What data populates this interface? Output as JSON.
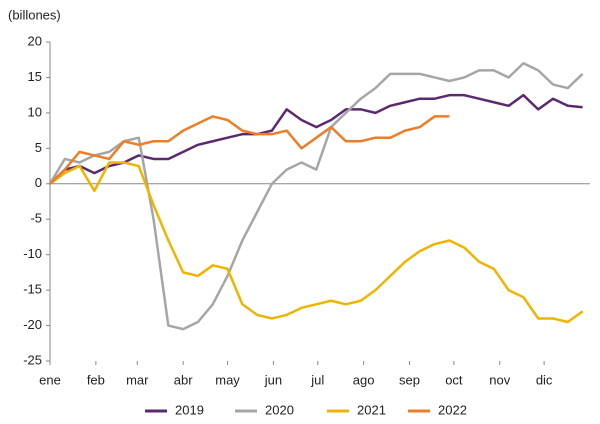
{
  "chart_data": {
    "type": "line",
    "ylabel": "(billones)",
    "x": [
      0,
      10,
      20,
      30,
      40,
      50,
      60,
      70,
      80,
      90,
      100,
      110,
      120,
      130,
      140,
      150,
      160,
      170,
      180,
      190,
      200,
      210,
      220,
      230,
      240,
      250,
      260,
      270,
      280,
      290,
      300,
      310,
      320,
      330,
      340,
      350,
      360
    ],
    "xlim": [
      0,
      365
    ],
    "xticks": [
      {
        "value": 0,
        "label": "ene"
      },
      {
        "value": 31,
        "label": "feb"
      },
      {
        "value": 59,
        "label": "mar"
      },
      {
        "value": 90,
        "label": "abr"
      },
      {
        "value": 120,
        "label": "may"
      },
      {
        "value": 151,
        "label": "jun"
      },
      {
        "value": 181,
        "label": "jul"
      },
      {
        "value": 212,
        "label": "ago"
      },
      {
        "value": 243,
        "label": "sep"
      },
      {
        "value": 273,
        "label": "oct"
      },
      {
        "value": 304,
        "label": "nov"
      },
      {
        "value": 334,
        "label": "dic"
      }
    ],
    "ylim": [
      -25,
      20
    ],
    "yticks": [
      -25,
      -20,
      -15,
      -10,
      -5,
      0,
      5,
      10,
      15,
      20
    ],
    "series": [
      {
        "name": "2019",
        "color": "#5b2a6e",
        "values": [
          0,
          2,
          2.5,
          1.5,
          2.5,
          3,
          4,
          3.5,
          3.5,
          4.5,
          5.5,
          6,
          6.5,
          7,
          7,
          7.5,
          10.5,
          9,
          8,
          9,
          10.5,
          10.5,
          10,
          11,
          11.5,
          12,
          12,
          12.5,
          12.5,
          12,
          11.5,
          11,
          12.5,
          10.5,
          12,
          11,
          10.8
        ]
      },
      {
        "name": "2020",
        "color": "#a6a6a6",
        "values": [
          0,
          3.5,
          3,
          4,
          4.5,
          6,
          6.5,
          -5,
          -20,
          -20.5,
          -19.5,
          -17,
          -13,
          -8,
          -4,
          0,
          2,
          3,
          2,
          8,
          10,
          12,
          13.5,
          15.5,
          15.5,
          15.5,
          15,
          14.5,
          15,
          16,
          16,
          15,
          17,
          16,
          14,
          13.5,
          15.5
        ]
      },
      {
        "name": "2021",
        "color": "#f0b400",
        "values": [
          0,
          1.5,
          2.5,
          -1,
          3,
          3,
          2.5,
          -3,
          -8,
          -12.5,
          -13,
          -11.5,
          -12,
          -17,
          -18.5,
          -19,
          -18.5,
          -17.5,
          -17,
          -16.5,
          -17,
          -16.5,
          -15,
          -13,
          -11,
          -9.5,
          -8.5,
          -8,
          -9,
          -11,
          -12,
          -15,
          -16,
          -19,
          -19,
          -19.5,
          -18
        ]
      },
      {
        "name": "2022",
        "color": "#ee7d28",
        "values": [
          0,
          2,
          4.5,
          4,
          3.5,
          6,
          5.5,
          6,
          6,
          7.5,
          8.5,
          9.5,
          9,
          7.5,
          7,
          7,
          7.5,
          5,
          6.5,
          8,
          6,
          6,
          6.5,
          6.5,
          7.5,
          8,
          9.5,
          9.5,
          null,
          null,
          null,
          null,
          null,
          null,
          null,
          null,
          null
        ]
      }
    ]
  }
}
